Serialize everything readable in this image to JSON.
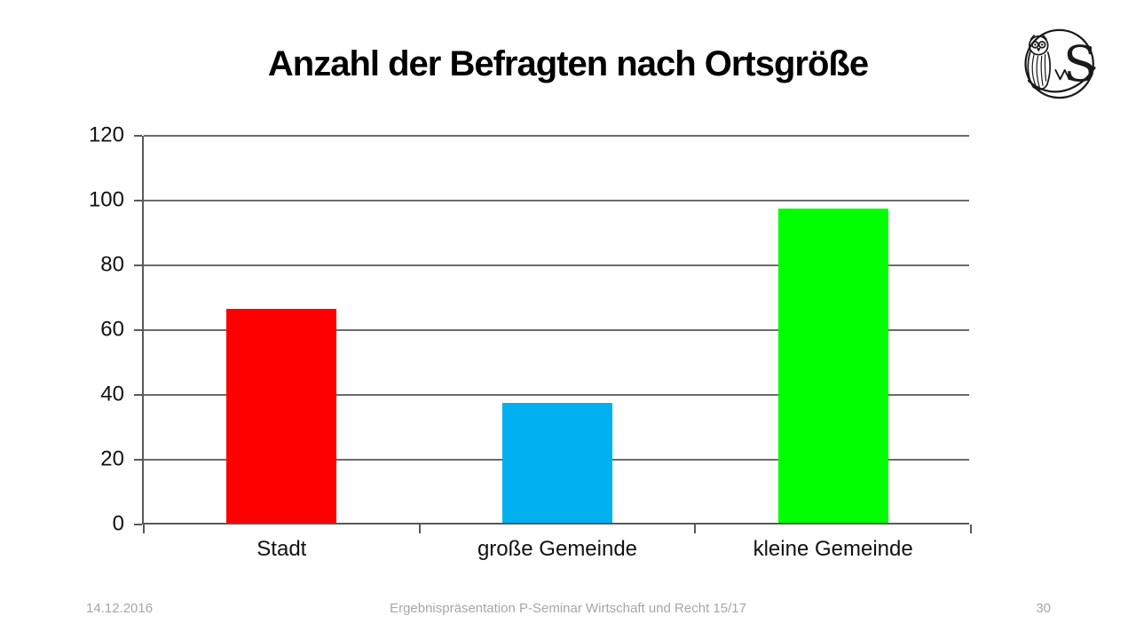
{
  "slide": {
    "title": "Anzahl der Befragten nach Ortsgröße",
    "footer": {
      "date": "14.12.2016",
      "center": "Ergebnispräsentation P-Seminar Wirtschaft und Recht 15/17",
      "page": "30"
    },
    "logo": "owl-and-letter-s-school-emblem"
  },
  "chart_data": {
    "type": "bar",
    "title": "Anzahl der Befragten nach Ortsgröße",
    "categories": [
      "Stadt",
      "große Gemeinde",
      "kleine Gemeinde"
    ],
    "values": [
      66,
      37,
      97
    ],
    "colors": [
      "#ff0000",
      "#00b0f0",
      "#00ff00"
    ],
    "xlabel": "",
    "ylabel": "",
    "ylim": [
      0,
      120
    ],
    "yticks": [
      0,
      20,
      40,
      60,
      80,
      100,
      120
    ],
    "grid": true,
    "legend": false,
    "bar_width_fraction": 0.4,
    "axis_color": "#595959",
    "grid_color": "#6b6b6b"
  }
}
